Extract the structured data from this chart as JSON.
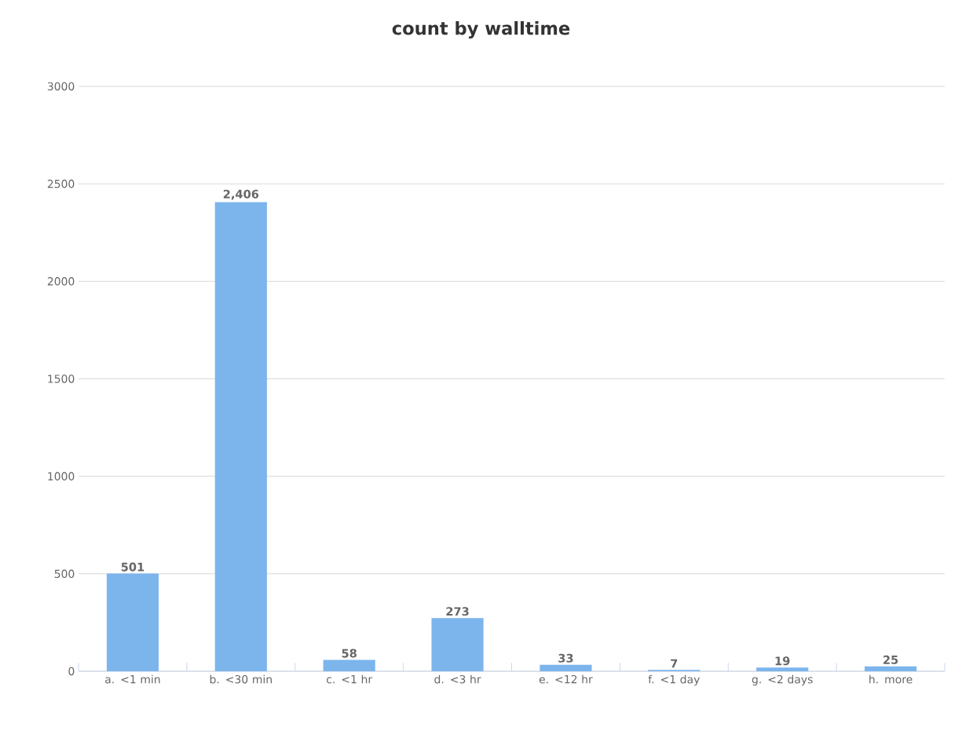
{
  "chart_data": {
    "type": "bar",
    "title": "count by walltime",
    "categories": [
      "a. <1 min",
      "b. <30 min",
      "c. <1 hr",
      "d. <3 hr",
      "e. <12 hr",
      "f. <1 day",
      "g. <2 days",
      "h. more"
    ],
    "values": [
      501,
      2406,
      58,
      273,
      33,
      7,
      19,
      25
    ],
    "value_labels": [
      "501",
      "2,406",
      "58",
      "273",
      "33",
      "7",
      "19",
      "25"
    ],
    "color": "#7cb5ec",
    "ylim": [
      0,
      3000
    ],
    "yticks": [
      0,
      500,
      1000,
      1500,
      2000,
      2500,
      3000
    ],
    "grid": "y"
  }
}
